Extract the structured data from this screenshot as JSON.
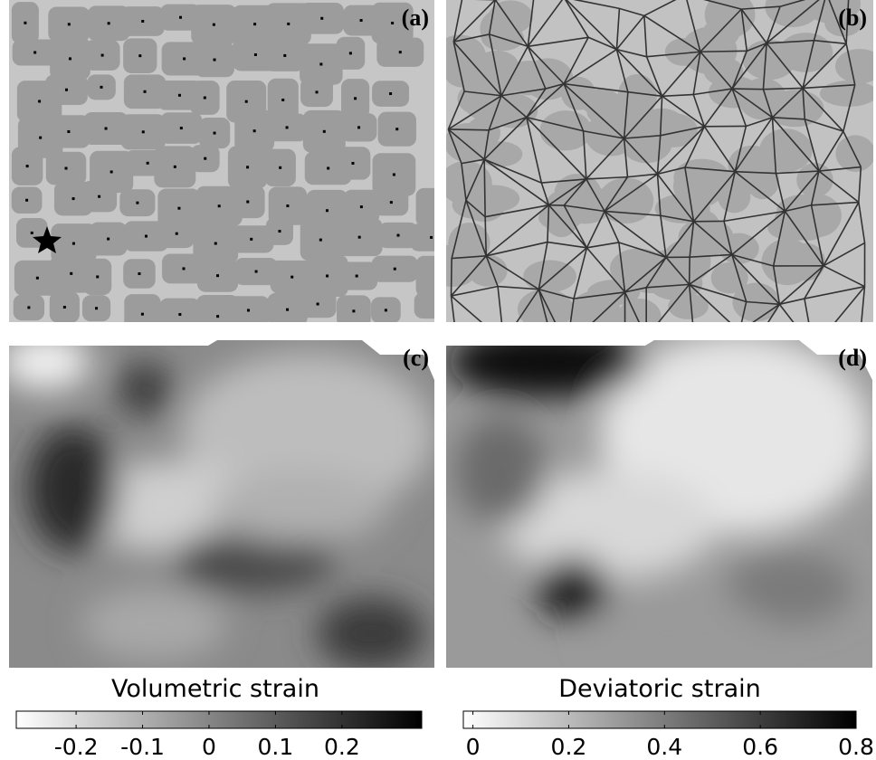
{
  "panels": [
    {
      "label": "(a)"
    },
    {
      "label": "(b)"
    },
    {
      "label": "(c)"
    },
    {
      "label": "(d)"
    }
  ],
  "chart_data": [
    {
      "type": "colorbar",
      "title": "Volumetric strain",
      "colors": [
        "#ffffff",
        "#000000"
      ],
      "xlim": [
        -0.29,
        0.32
      ],
      "xticks": [
        -0.2,
        -0.1,
        0,
        0.1,
        0.2
      ]
    },
    {
      "type": "colorbar",
      "title": "Deviatoric strain",
      "colors": [
        "#ffffff",
        "#000000"
      ],
      "xlim": [
        -0.02,
        0.8
      ],
      "xticks": [
        0,
        0.2,
        0.4,
        0.6,
        0.8
      ]
    }
  ]
}
